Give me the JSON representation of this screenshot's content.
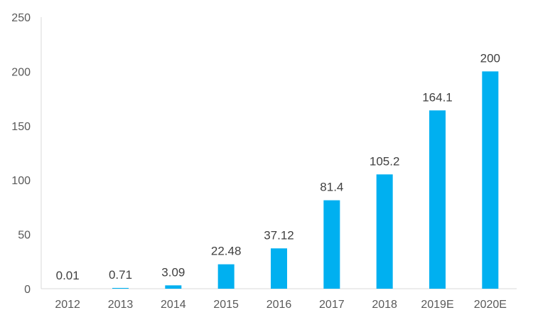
{
  "chart_data": {
    "type": "bar",
    "categories": [
      "2012",
      "2013",
      "2014",
      "2015",
      "2016",
      "2017",
      "2018",
      "2019E",
      "2020E"
    ],
    "values": [
      0.01,
      0.71,
      3.09,
      22.48,
      37.12,
      81.4,
      105.2,
      164.1,
      200
    ],
    "value_labels": [
      "0.01",
      "0.71",
      "3.09",
      "22.48",
      "37.12",
      "81.4",
      "105.2",
      "164.1",
      "200"
    ],
    "ylim": [
      0,
      250
    ],
    "yticks": [
      0,
      50,
      100,
      150,
      200,
      250
    ],
    "grid": false,
    "legend": "none",
    "bar_color": "#00B0F0",
    "title": "",
    "xlabel": "",
    "ylabel": ""
  }
}
